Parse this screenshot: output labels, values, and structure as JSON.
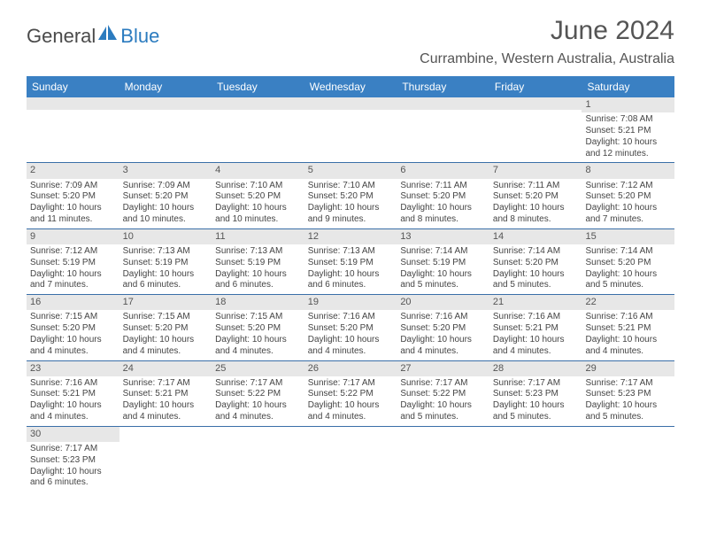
{
  "brand": {
    "part1": "General",
    "part2": "Blue"
  },
  "title": "June 2024",
  "location": "Currambine, Western Australia, Australia",
  "colors": {
    "header_bg": "#3a80c3",
    "header_text": "#ffffff",
    "daynum_bg": "#e7e7e7",
    "row_border": "#3a6fa8",
    "brand_blue": "#2b7bbf",
    "brand_gray": "#4a4a4a"
  },
  "day_headers": [
    "Sunday",
    "Monday",
    "Tuesday",
    "Wednesday",
    "Thursday",
    "Friday",
    "Saturday"
  ],
  "weeks": [
    [
      {
        "empty": true
      },
      {
        "empty": true
      },
      {
        "empty": true
      },
      {
        "empty": true
      },
      {
        "empty": true
      },
      {
        "empty": true
      },
      {
        "day": "1",
        "sunrise": "Sunrise: 7:08 AM",
        "sunset": "Sunset: 5:21 PM",
        "daylight": "Daylight: 10 hours and 12 minutes."
      }
    ],
    [
      {
        "day": "2",
        "sunrise": "Sunrise: 7:09 AM",
        "sunset": "Sunset: 5:20 PM",
        "daylight": "Daylight: 10 hours and 11 minutes."
      },
      {
        "day": "3",
        "sunrise": "Sunrise: 7:09 AM",
        "sunset": "Sunset: 5:20 PM",
        "daylight": "Daylight: 10 hours and 10 minutes."
      },
      {
        "day": "4",
        "sunrise": "Sunrise: 7:10 AM",
        "sunset": "Sunset: 5:20 PM",
        "daylight": "Daylight: 10 hours and 10 minutes."
      },
      {
        "day": "5",
        "sunrise": "Sunrise: 7:10 AM",
        "sunset": "Sunset: 5:20 PM",
        "daylight": "Daylight: 10 hours and 9 minutes."
      },
      {
        "day": "6",
        "sunrise": "Sunrise: 7:11 AM",
        "sunset": "Sunset: 5:20 PM",
        "daylight": "Daylight: 10 hours and 8 minutes."
      },
      {
        "day": "7",
        "sunrise": "Sunrise: 7:11 AM",
        "sunset": "Sunset: 5:20 PM",
        "daylight": "Daylight: 10 hours and 8 minutes."
      },
      {
        "day": "8",
        "sunrise": "Sunrise: 7:12 AM",
        "sunset": "Sunset: 5:20 PM",
        "daylight": "Daylight: 10 hours and 7 minutes."
      }
    ],
    [
      {
        "day": "9",
        "sunrise": "Sunrise: 7:12 AM",
        "sunset": "Sunset: 5:19 PM",
        "daylight": "Daylight: 10 hours and 7 minutes."
      },
      {
        "day": "10",
        "sunrise": "Sunrise: 7:13 AM",
        "sunset": "Sunset: 5:19 PM",
        "daylight": "Daylight: 10 hours and 6 minutes."
      },
      {
        "day": "11",
        "sunrise": "Sunrise: 7:13 AM",
        "sunset": "Sunset: 5:19 PM",
        "daylight": "Daylight: 10 hours and 6 minutes."
      },
      {
        "day": "12",
        "sunrise": "Sunrise: 7:13 AM",
        "sunset": "Sunset: 5:19 PM",
        "daylight": "Daylight: 10 hours and 6 minutes."
      },
      {
        "day": "13",
        "sunrise": "Sunrise: 7:14 AM",
        "sunset": "Sunset: 5:19 PM",
        "daylight": "Daylight: 10 hours and 5 minutes."
      },
      {
        "day": "14",
        "sunrise": "Sunrise: 7:14 AM",
        "sunset": "Sunset: 5:20 PM",
        "daylight": "Daylight: 10 hours and 5 minutes."
      },
      {
        "day": "15",
        "sunrise": "Sunrise: 7:14 AM",
        "sunset": "Sunset: 5:20 PM",
        "daylight": "Daylight: 10 hours and 5 minutes."
      }
    ],
    [
      {
        "day": "16",
        "sunrise": "Sunrise: 7:15 AM",
        "sunset": "Sunset: 5:20 PM",
        "daylight": "Daylight: 10 hours and 4 minutes."
      },
      {
        "day": "17",
        "sunrise": "Sunrise: 7:15 AM",
        "sunset": "Sunset: 5:20 PM",
        "daylight": "Daylight: 10 hours and 4 minutes."
      },
      {
        "day": "18",
        "sunrise": "Sunrise: 7:15 AM",
        "sunset": "Sunset: 5:20 PM",
        "daylight": "Daylight: 10 hours and 4 minutes."
      },
      {
        "day": "19",
        "sunrise": "Sunrise: 7:16 AM",
        "sunset": "Sunset: 5:20 PM",
        "daylight": "Daylight: 10 hours and 4 minutes."
      },
      {
        "day": "20",
        "sunrise": "Sunrise: 7:16 AM",
        "sunset": "Sunset: 5:20 PM",
        "daylight": "Daylight: 10 hours and 4 minutes."
      },
      {
        "day": "21",
        "sunrise": "Sunrise: 7:16 AM",
        "sunset": "Sunset: 5:21 PM",
        "daylight": "Daylight: 10 hours and 4 minutes."
      },
      {
        "day": "22",
        "sunrise": "Sunrise: 7:16 AM",
        "sunset": "Sunset: 5:21 PM",
        "daylight": "Daylight: 10 hours and 4 minutes."
      }
    ],
    [
      {
        "day": "23",
        "sunrise": "Sunrise: 7:16 AM",
        "sunset": "Sunset: 5:21 PM",
        "daylight": "Daylight: 10 hours and 4 minutes."
      },
      {
        "day": "24",
        "sunrise": "Sunrise: 7:17 AM",
        "sunset": "Sunset: 5:21 PM",
        "daylight": "Daylight: 10 hours and 4 minutes."
      },
      {
        "day": "25",
        "sunrise": "Sunrise: 7:17 AM",
        "sunset": "Sunset: 5:22 PM",
        "daylight": "Daylight: 10 hours and 4 minutes."
      },
      {
        "day": "26",
        "sunrise": "Sunrise: 7:17 AM",
        "sunset": "Sunset: 5:22 PM",
        "daylight": "Daylight: 10 hours and 4 minutes."
      },
      {
        "day": "27",
        "sunrise": "Sunrise: 7:17 AM",
        "sunset": "Sunset: 5:22 PM",
        "daylight": "Daylight: 10 hours and 5 minutes."
      },
      {
        "day": "28",
        "sunrise": "Sunrise: 7:17 AM",
        "sunset": "Sunset: 5:23 PM",
        "daylight": "Daylight: 10 hours and 5 minutes."
      },
      {
        "day": "29",
        "sunrise": "Sunrise: 7:17 AM",
        "sunset": "Sunset: 5:23 PM",
        "daylight": "Daylight: 10 hours and 5 minutes."
      }
    ],
    [
      {
        "day": "30",
        "sunrise": "Sunrise: 7:17 AM",
        "sunset": "Sunset: 5:23 PM",
        "daylight": "Daylight: 10 hours and 6 minutes."
      },
      {
        "empty": true
      },
      {
        "empty": true
      },
      {
        "empty": true
      },
      {
        "empty": true
      },
      {
        "empty": true
      },
      {
        "empty": true
      }
    ]
  ]
}
